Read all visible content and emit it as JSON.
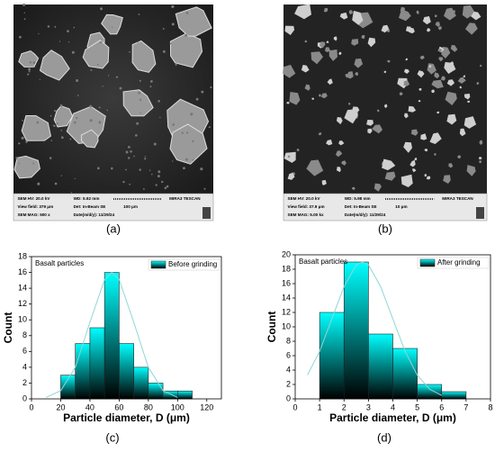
{
  "panels": [
    {
      "caption": "(a)",
      "sem_info": [
        "SEM HV: 20.0 kV",
        "WD: 5.92 mm",
        "MIRA3 TESCAN",
        "View field: 379 μm",
        "Det: In-Beam SE",
        "100 μm",
        "SEM MAG: 500 x",
        "Date(m/d/y): 11/29/24"
      ]
    },
    {
      "caption": "(b)",
      "sem_info": [
        "SEM HV: 20.0 kV",
        "WD: 5.98 mm",
        "MIRA3 TESCAN",
        "View field: 37.9 μm",
        "Det: In-Beam SE",
        "10 μm",
        "SEM MAG: 5.00 kx",
        "Date(m/d/y): 11/29/24"
      ]
    }
  ],
  "chart_data": [
    {
      "type": "histogram",
      "caption": "(c)",
      "annotation": "Basalt particles",
      "x_label": "Particle diameter, D (μm)",
      "y_label": "Count",
      "bins": [
        20,
        30,
        40,
        50,
        60,
        70,
        80,
        90,
        100,
        110
      ],
      "series": [
        {
          "name": "Before grinding",
          "color": "#00ffff",
          "values": [
            3,
            7,
            9,
            16,
            7,
            4,
            2,
            1,
            1
          ]
        }
      ],
      "fit": {
        "color": "#8ed6d6",
        "x": [
          10,
          20,
          30,
          40,
          50,
          55,
          60,
          70,
          80,
          90,
          100
        ],
        "values": [
          0.18,
          1.05,
          4.0,
          9.7,
          15.1,
          16,
          15.1,
          9.7,
          4.0,
          1.05,
          0.18
        ]
      },
      "xlim": [
        0,
        130
      ],
      "xticks": [
        0,
        20,
        40,
        60,
        80,
        100,
        120
      ],
      "ylim": [
        0,
        18
      ],
      "yticks": [
        0,
        2,
        4,
        6,
        8,
        10,
        12,
        14,
        16,
        18
      ],
      "legend": "top-right"
    },
    {
      "type": "histogram",
      "caption": "(d)",
      "annotation": "Basalt particles",
      "x_label": "Particle diameter, D (μm)",
      "y_label": "Count",
      "bins": [
        1,
        2,
        3,
        4,
        5,
        6,
        7
      ],
      "series": [
        {
          "name": "After grinding",
          "color": "#00ffff",
          "values": [
            12,
            19,
            9,
            7,
            2,
            1
          ]
        }
      ],
      "fit": {
        "color": "#8ed6d6",
        "x": [
          0.5,
          1,
          1.5,
          2,
          2.5,
          2.75,
          3,
          3.5,
          4,
          4.5,
          5,
          5.5,
          6
        ],
        "values": [
          3.3,
          6.6,
          11.1,
          15.6,
          18.6,
          19,
          18.6,
          15.6,
          11.1,
          6.6,
          3.3,
          1.36,
          0.48
        ]
      },
      "xlim": [
        0,
        8
      ],
      "xticks": [
        0,
        1,
        2,
        3,
        4,
        5,
        6,
        7,
        8
      ],
      "ylim": [
        0,
        20
      ],
      "yticks": [
        0,
        2,
        4,
        6,
        8,
        10,
        12,
        14,
        16,
        18,
        20
      ],
      "legend": "top-right"
    }
  ]
}
